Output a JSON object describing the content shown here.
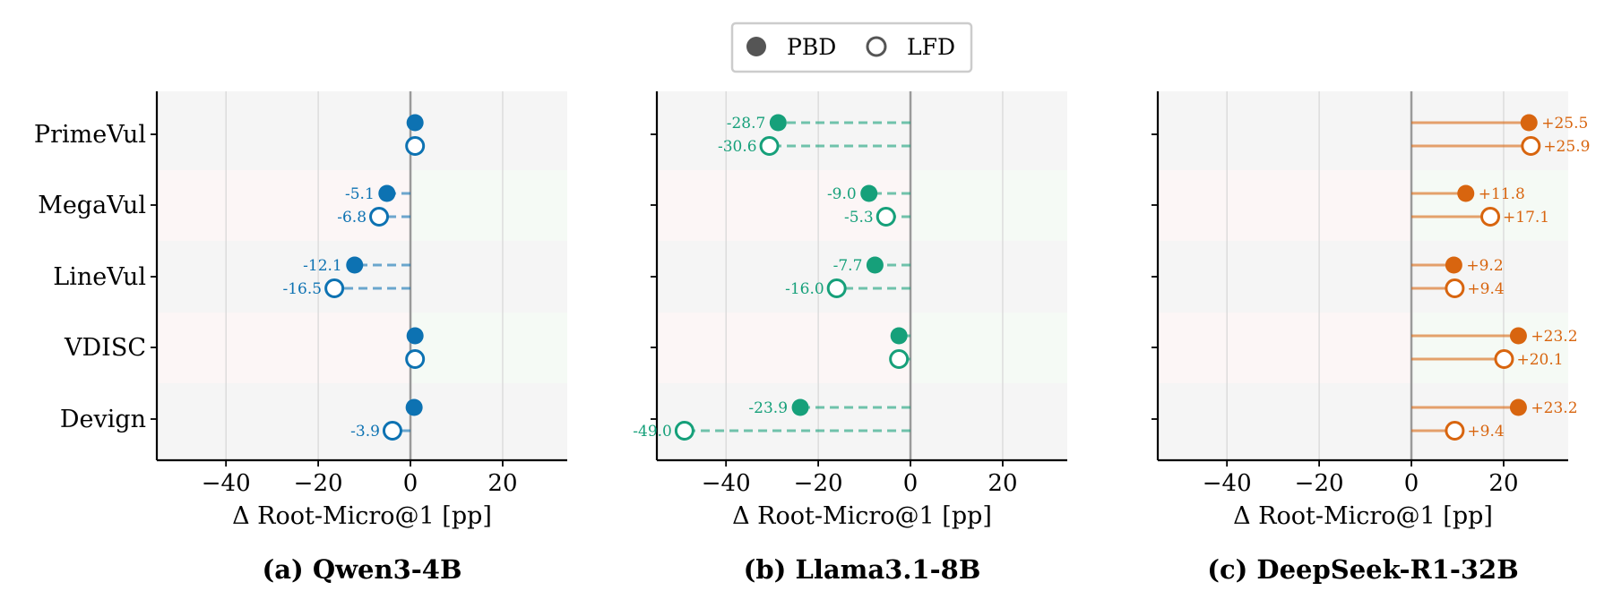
{
  "legend": {
    "items": [
      {
        "label": "PBD",
        "marker": "filled"
      },
      {
        "label": "LFD",
        "marker": "hollow"
      }
    ]
  },
  "chart_data": [
    {
      "type": "scatter",
      "title": "(a) Qwen3-4B",
      "xlabel": "Δ Root-Micro@1 [pp]",
      "color": "#0d72b2",
      "xlim": [
        -55,
        34
      ],
      "xticks": [
        -40,
        -20,
        0,
        20
      ],
      "xtick_labels": [
        "−40",
        "−20",
        "0",
        "20"
      ],
      "grid": "vertical",
      "categories": [
        "PrimeVul",
        "MegaVul",
        "LineVul",
        "VDISC",
        "Devign"
      ],
      "series": [
        {
          "name": "PBD",
          "values": [
            1.0,
            -5.1,
            -12.1,
            1.0,
            0.8
          ],
          "labels": [
            "",
            "-5.1",
            "-12.1",
            "",
            ""
          ]
        },
        {
          "name": "LFD",
          "values": [
            1.0,
            -6.8,
            -16.5,
            1.0,
            -3.9
          ],
          "labels": [
            "",
            "-6.8",
            "-16.5",
            "",
            "-3.9"
          ]
        }
      ]
    },
    {
      "type": "scatter",
      "title": "(b) Llama3.1-8B",
      "xlabel": "Δ Root-Micro@1 [pp]",
      "color": "#16a07a",
      "xlim": [
        -55,
        34
      ],
      "xticks": [
        -40,
        -20,
        0,
        20
      ],
      "xtick_labels": [
        "−40",
        "−20",
        "0",
        "20"
      ],
      "grid": "vertical",
      "categories": [
        "PrimeVul",
        "MegaVul",
        "LineVul",
        "VDISC",
        "Devign"
      ],
      "series": [
        {
          "name": "PBD",
          "values": [
            -28.7,
            -9.0,
            -7.7,
            -2.5,
            -23.9
          ],
          "labels": [
            "-28.7",
            "-9.0",
            "-7.7",
            "",
            "-23.9"
          ]
        },
        {
          "name": "LFD",
          "values": [
            -30.6,
            -5.3,
            -16.0,
            -2.5,
            -49.0
          ],
          "labels": [
            "-30.6",
            "-5.3",
            "-16.0",
            "",
            "-49.0"
          ]
        }
      ]
    },
    {
      "type": "scatter",
      "title": "(c) DeepSeek-R1-32B",
      "xlabel": "Δ Root-Micro@1 [pp]",
      "color": "#d8650f",
      "xlim": [
        -55,
        34
      ],
      "xticks": [
        -40,
        -20,
        0,
        20
      ],
      "xtick_labels": [
        "−40",
        "−20",
        "0",
        "20"
      ],
      "grid": "vertical",
      "categories": [
        "PrimeVul",
        "MegaVul",
        "LineVul",
        "VDISC",
        "Devign"
      ],
      "series": [
        {
          "name": "PBD",
          "values": [
            25.5,
            11.8,
            9.2,
            23.2,
            23.2
          ],
          "labels": [
            "+25.5",
            "+11.8",
            "+9.2",
            "+23.2",
            "+23.2"
          ]
        },
        {
          "name": "LFD",
          "values": [
            25.9,
            17.1,
            9.4,
            20.1,
            9.4
          ],
          "labels": [
            "+25.9",
            "+17.1",
            "+9.4",
            "+20.1",
            "+9.4"
          ]
        }
      ]
    }
  ]
}
